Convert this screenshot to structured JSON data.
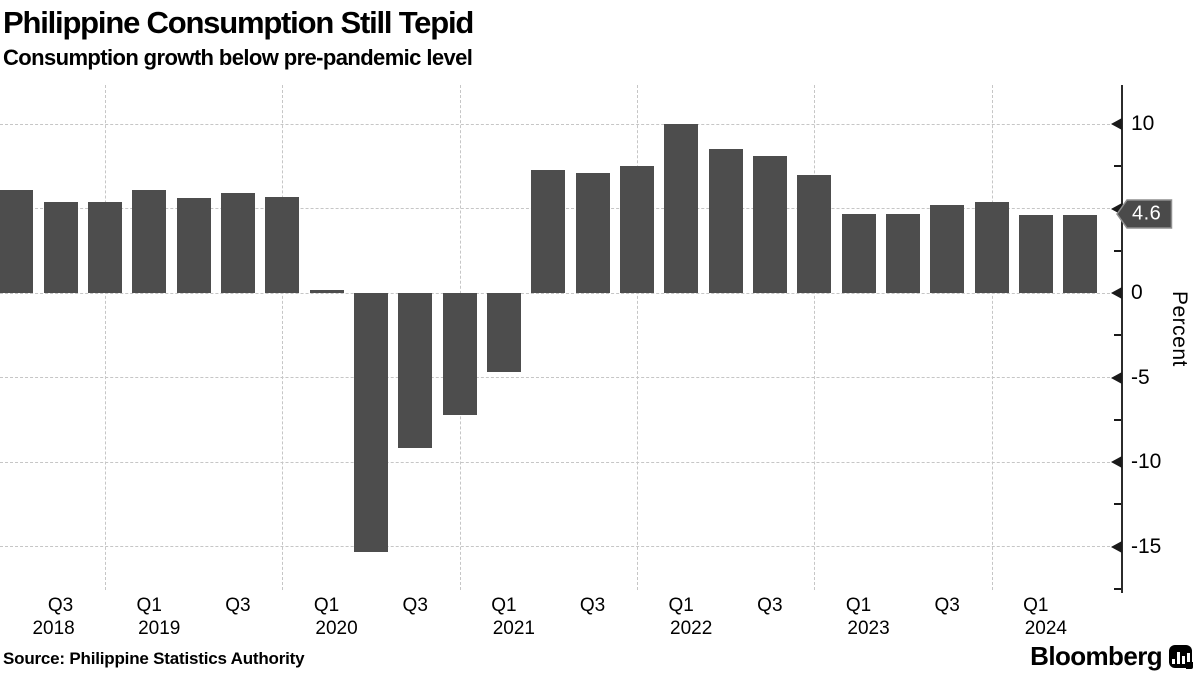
{
  "header": {
    "title": "Philippine Consumption Still Tepid",
    "subtitle": "Consumption growth below pre-pandemic level"
  },
  "chart_data": {
    "type": "bar",
    "title": "Philippine Consumption Still Tepid",
    "subtitle": "Consumption growth below pre-pandemic level",
    "ylabel": "Percent",
    "xlabel": "",
    "legend": "none",
    "grid": "dashed",
    "categories": [
      "Q2 2018",
      "Q3 2018",
      "Q4 2018",
      "Q1 2019",
      "Q2 2019",
      "Q3 2019",
      "Q4 2019",
      "Q1 2020",
      "Q2 2020",
      "Q3 2020",
      "Q4 2020",
      "Q1 2021",
      "Q2 2021",
      "Q3 2021",
      "Q4 2021",
      "Q1 2022",
      "Q2 2022",
      "Q3 2022",
      "Q4 2022",
      "Q1 2023",
      "Q2 2023",
      "Q3 2023",
      "Q4 2023",
      "Q1 2024",
      "Q2 2024"
    ],
    "values": [
      6.1,
      5.4,
      5.4,
      6.1,
      5.6,
      5.9,
      5.7,
      0.2,
      -15.3,
      -9.2,
      -7.2,
      -4.7,
      7.3,
      7.1,
      7.5,
      10.0,
      8.5,
      8.1,
      7.0,
      4.7,
      4.7,
      5.2,
      5.4,
      4.6,
      4.6
    ],
    "ylim": [
      -17.5,
      12.3
    ],
    "y_ticks_major": [
      10,
      5,
      0,
      -5,
      -10,
      -15
    ],
    "y_ticks_minor": [
      7.5,
      2.5,
      -2.5,
      -7.5,
      -12.5,
      -17.5
    ],
    "x_ticks": [
      {
        "index": 1,
        "label": "Q3"
      },
      {
        "index": 3,
        "label": "Q1"
      },
      {
        "index": 5,
        "label": "Q3"
      },
      {
        "index": 7,
        "label": "Q1"
      },
      {
        "index": 9,
        "label": "Q3"
      },
      {
        "index": 11,
        "label": "Q1"
      },
      {
        "index": 13,
        "label": "Q3"
      },
      {
        "index": 15,
        "label": "Q1"
      },
      {
        "index": 17,
        "label": "Q3"
      },
      {
        "index": 19,
        "label": "Q1"
      },
      {
        "index": 21,
        "label": "Q3"
      },
      {
        "index": 23,
        "label": "Q1"
      }
    ],
    "year_ticks": [
      {
        "index": 1,
        "label": "2018"
      },
      {
        "index": 3,
        "label": "2019"
      },
      {
        "index": 7,
        "label": "2020"
      },
      {
        "index": 11,
        "label": "2021"
      },
      {
        "index": 15,
        "label": "2022"
      },
      {
        "index": 19,
        "label": "2023"
      },
      {
        "index": 23,
        "label": "2024"
      }
    ],
    "year_gridline_indices": [
      2,
      6,
      10,
      14,
      18,
      22
    ],
    "last_value": 4.6,
    "last_value_label": "4.6",
    "colors": {
      "bar": "#4d4d4d",
      "badge_bg": "#4a4a4a",
      "badge_outline": "#8f8f8f",
      "badge_text": "#ffffff",
      "grid": "#c6c6c6",
      "axis": "#2b2b2b",
      "text": "#000000",
      "background": "#ffffff"
    }
  },
  "footer": {
    "source": "Source: Philippine Statistics Authority",
    "brand_name": "Bloomberg"
  }
}
